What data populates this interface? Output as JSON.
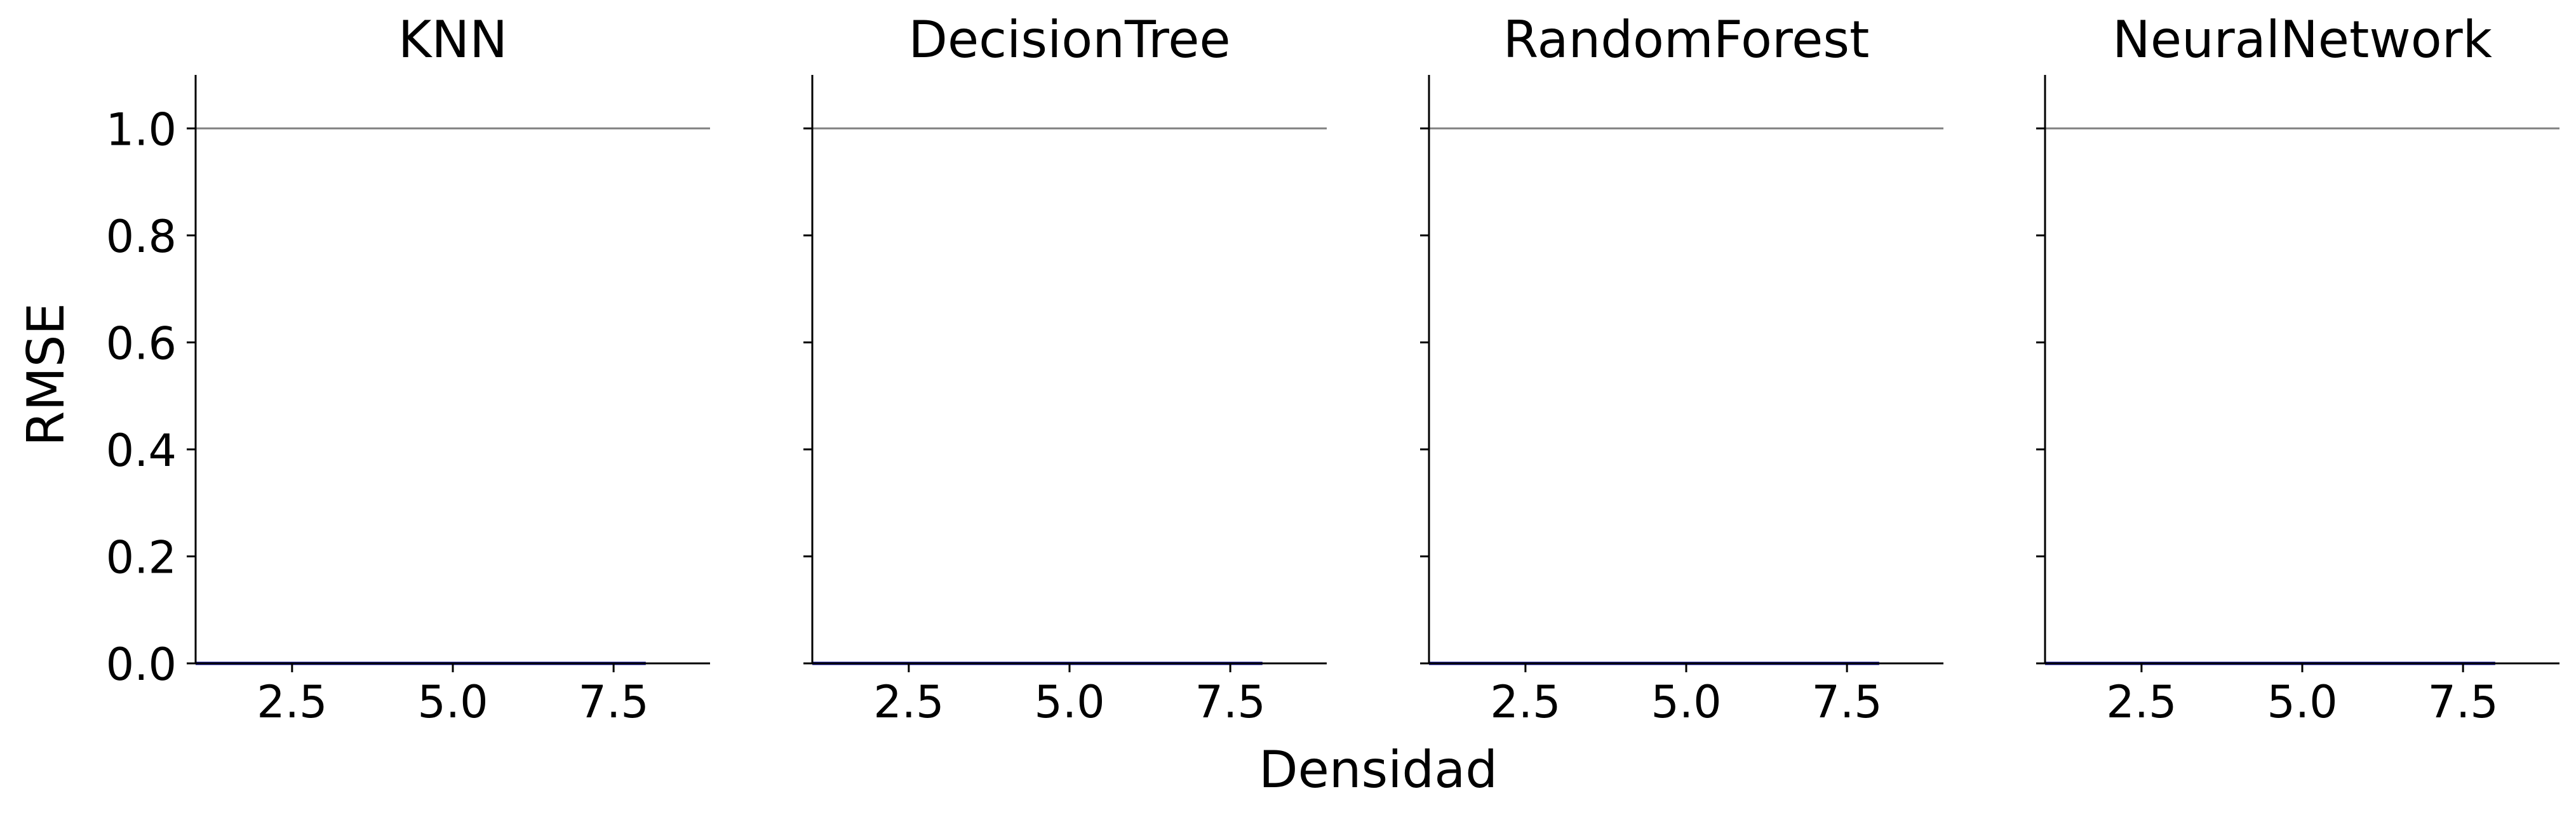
{
  "figure": {
    "xlabel": "Densidad",
    "ylabel": "RMSE"
  },
  "colors": {
    "line": "#00008b",
    "reference_line": "#808080",
    "axis": "#000000"
  },
  "chart_data": [
    {
      "type": "line",
      "title": "KNN",
      "xlim": [
        1,
        9
      ],
      "ylim": [
        0,
        1.1
      ],
      "xticks": [
        2.5,
        5.0,
        7.5
      ],
      "xtick_labels": [
        "2.5",
        "5.0",
        "7.5"
      ],
      "yticks": [
        0.0,
        0.2,
        0.4,
        0.6,
        0.8,
        1.0
      ],
      "ytick_labels": [
        "0.0",
        "0.2",
        "0.4",
        "0.6",
        "0.8",
        "1.0"
      ],
      "reference_y": 1.0,
      "series": [
        {
          "x": [
            1,
            2,
            3,
            4,
            5,
            6,
            7,
            8
          ],
          "values": [
            0,
            0,
            0,
            0,
            0,
            0,
            0,
            0
          ]
        }
      ],
      "grid": false
    },
    {
      "type": "line",
      "title": "DecisionTree",
      "xlim": [
        1,
        9
      ],
      "ylim": [
        0,
        1.1
      ],
      "xticks": [
        2.5,
        5.0,
        7.5
      ],
      "xtick_labels": [
        "2.5",
        "5.0",
        "7.5"
      ],
      "yticks": [
        0.0,
        0.2,
        0.4,
        0.6,
        0.8,
        1.0
      ],
      "ytick_labels": [],
      "reference_y": 1.0,
      "series": [
        {
          "x": [
            1,
            2,
            3,
            4,
            5,
            6,
            7,
            8
          ],
          "values": [
            0,
            0,
            0,
            0,
            0,
            0,
            0,
            0
          ]
        }
      ],
      "grid": false
    },
    {
      "type": "line",
      "title": "RandomForest",
      "xlim": [
        1,
        9
      ],
      "ylim": [
        0,
        1.1
      ],
      "xticks": [
        2.5,
        5.0,
        7.5
      ],
      "xtick_labels": [
        "2.5",
        "5.0",
        "7.5"
      ],
      "yticks": [
        0.0,
        0.2,
        0.4,
        0.6,
        0.8,
        1.0
      ],
      "ytick_labels": [],
      "reference_y": 1.0,
      "series": [
        {
          "x": [
            1,
            2,
            3,
            4,
            5,
            6,
            7,
            8
          ],
          "values": [
            0,
            0,
            0,
            0,
            0,
            0,
            0,
            0
          ]
        }
      ],
      "grid": false
    },
    {
      "type": "line",
      "title": "NeuralNetwork",
      "xlim": [
        1,
        9
      ],
      "ylim": [
        0,
        1.1
      ],
      "xticks": [
        2.5,
        5.0,
        7.5
      ],
      "xtick_labels": [
        "2.5",
        "5.0",
        "7.5"
      ],
      "yticks": [
        0.0,
        0.2,
        0.4,
        0.6,
        0.8,
        1.0
      ],
      "ytick_labels": [],
      "reference_y": 1.0,
      "series": [
        {
          "x": [
            1,
            2,
            3,
            4,
            5,
            6,
            7,
            8
          ],
          "values": [
            0,
            0,
            0,
            0,
            0,
            0,
            0,
            0
          ]
        }
      ],
      "grid": false
    }
  ]
}
